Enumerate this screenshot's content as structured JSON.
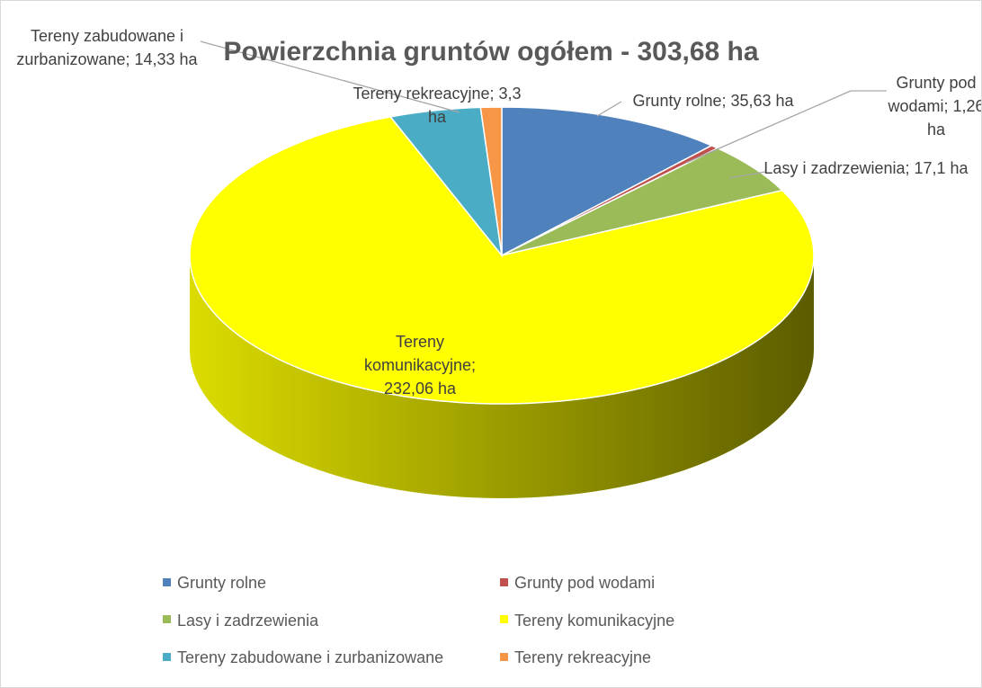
{
  "chart_data": {
    "type": "pie3d",
    "title": "Powierzchnia gruntów ogółem - 303,68 ha",
    "categories": [
      "Grunty rolne",
      "Grunty pod wodami",
      "Lasy i zadrzewienia",
      "Tereny komunikacyjne",
      "Tereny zabudowane i zurbanizowane",
      "Tereny rekreacyjne"
    ],
    "values": [
      35.63,
      1.26,
      17.1,
      232.06,
      14.33,
      3.3
    ],
    "value_labels": [
      "Grunty rolne; 35,63 ha",
      "Grunty pod wodami; 1,26 ha",
      "Lasy i zadrzewienia; 17,1 ha",
      "Tereny komunikacyjne; 232,06 ha",
      "Tereny zabudowane i zurbanizowane; 14,33 ha",
      "Tereny rekreacyjne; 3,3 ha"
    ],
    "colors": [
      "#4f81bd",
      "#c0504d",
      "#9bbb59",
      "#ffff00",
      "#4bacc6",
      "#f79646"
    ],
    "legend": "bottom"
  }
}
